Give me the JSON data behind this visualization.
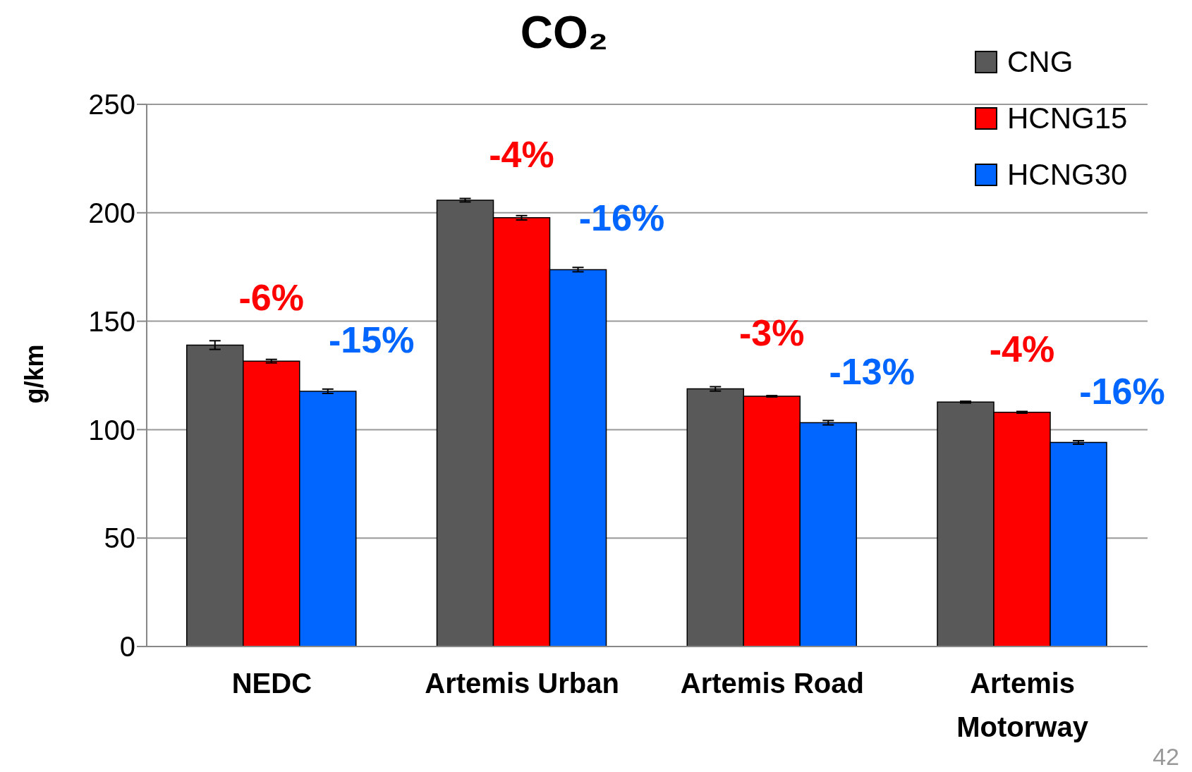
{
  "chart_data": {
    "type": "bar",
    "title": "CO₂",
    "ylabel": "g/km",
    "categories": [
      "NEDC",
      "Artemis Urban",
      "Artemis Road",
      "Artemis Motorway"
    ],
    "series": [
      {
        "name": "CNG",
        "color": "#595959",
        "values": [
          139,
          205.8,
          118.8,
          112.7
        ],
        "errors": [
          2,
          0.8,
          1,
          0.4
        ]
      },
      {
        "name": "HCNG15",
        "color": "#ff0000",
        "values": [
          131.6,
          197.7,
          115.4,
          108
        ],
        "errors": [
          0.8,
          1,
          0.3,
          0.4
        ]
      },
      {
        "name": "HCNG30",
        "color": "#0066ff",
        "values": [
          117.7,
          173.8,
          103.2,
          94.1
        ],
        "errors": [
          1,
          1,
          1,
          0.8
        ]
      }
    ],
    "ylim": [
      0,
      250
    ],
    "yticks": [
      0,
      50,
      100,
      150,
      200,
      250
    ],
    "grid": "y",
    "legend": "top right",
    "annotations": [
      "-6%",
      "-15%",
      "-4%",
      "-16%",
      "-3%",
      "-13%",
      "-4%",
      "-16%",
      "42"
    ]
  }
}
